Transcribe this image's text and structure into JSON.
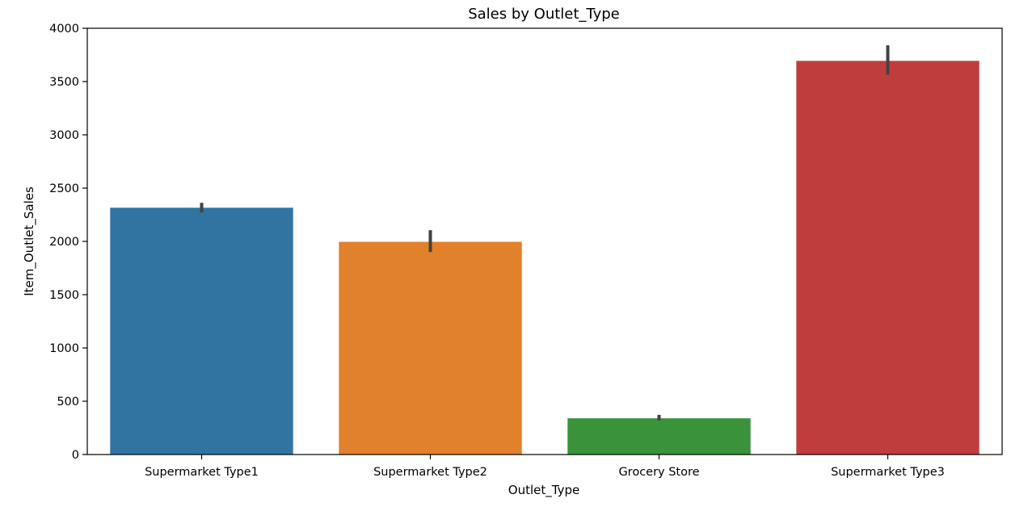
{
  "chart_data": {
    "type": "bar",
    "title": "Sales by Outlet_Type",
    "xlabel": "Outlet_Type",
    "ylabel": "Item_Outlet_Sales",
    "categories": [
      "Supermarket Type1",
      "Supermarket Type2",
      "Grocery Store",
      "Supermarket Type3"
    ],
    "values": [
      2316,
      1996,
      340,
      3694
    ],
    "error_bars": [
      {
        "low": 2272,
        "high": 2362
      },
      {
        "low": 1900,
        "high": 2105
      },
      {
        "low": 320,
        "high": 372
      },
      {
        "low": 3565,
        "high": 3840
      }
    ],
    "colors": [
      "#3274a1",
      "#e1812c",
      "#3a923a",
      "#c03d3e"
    ],
    "error_bar_color": "#424242",
    "ylim": [
      0,
      4000
    ],
    "yticks": [
      0,
      500,
      1000,
      1500,
      2000,
      2500,
      3000,
      3500,
      4000
    ],
    "grid": false,
    "legend": "none"
  }
}
